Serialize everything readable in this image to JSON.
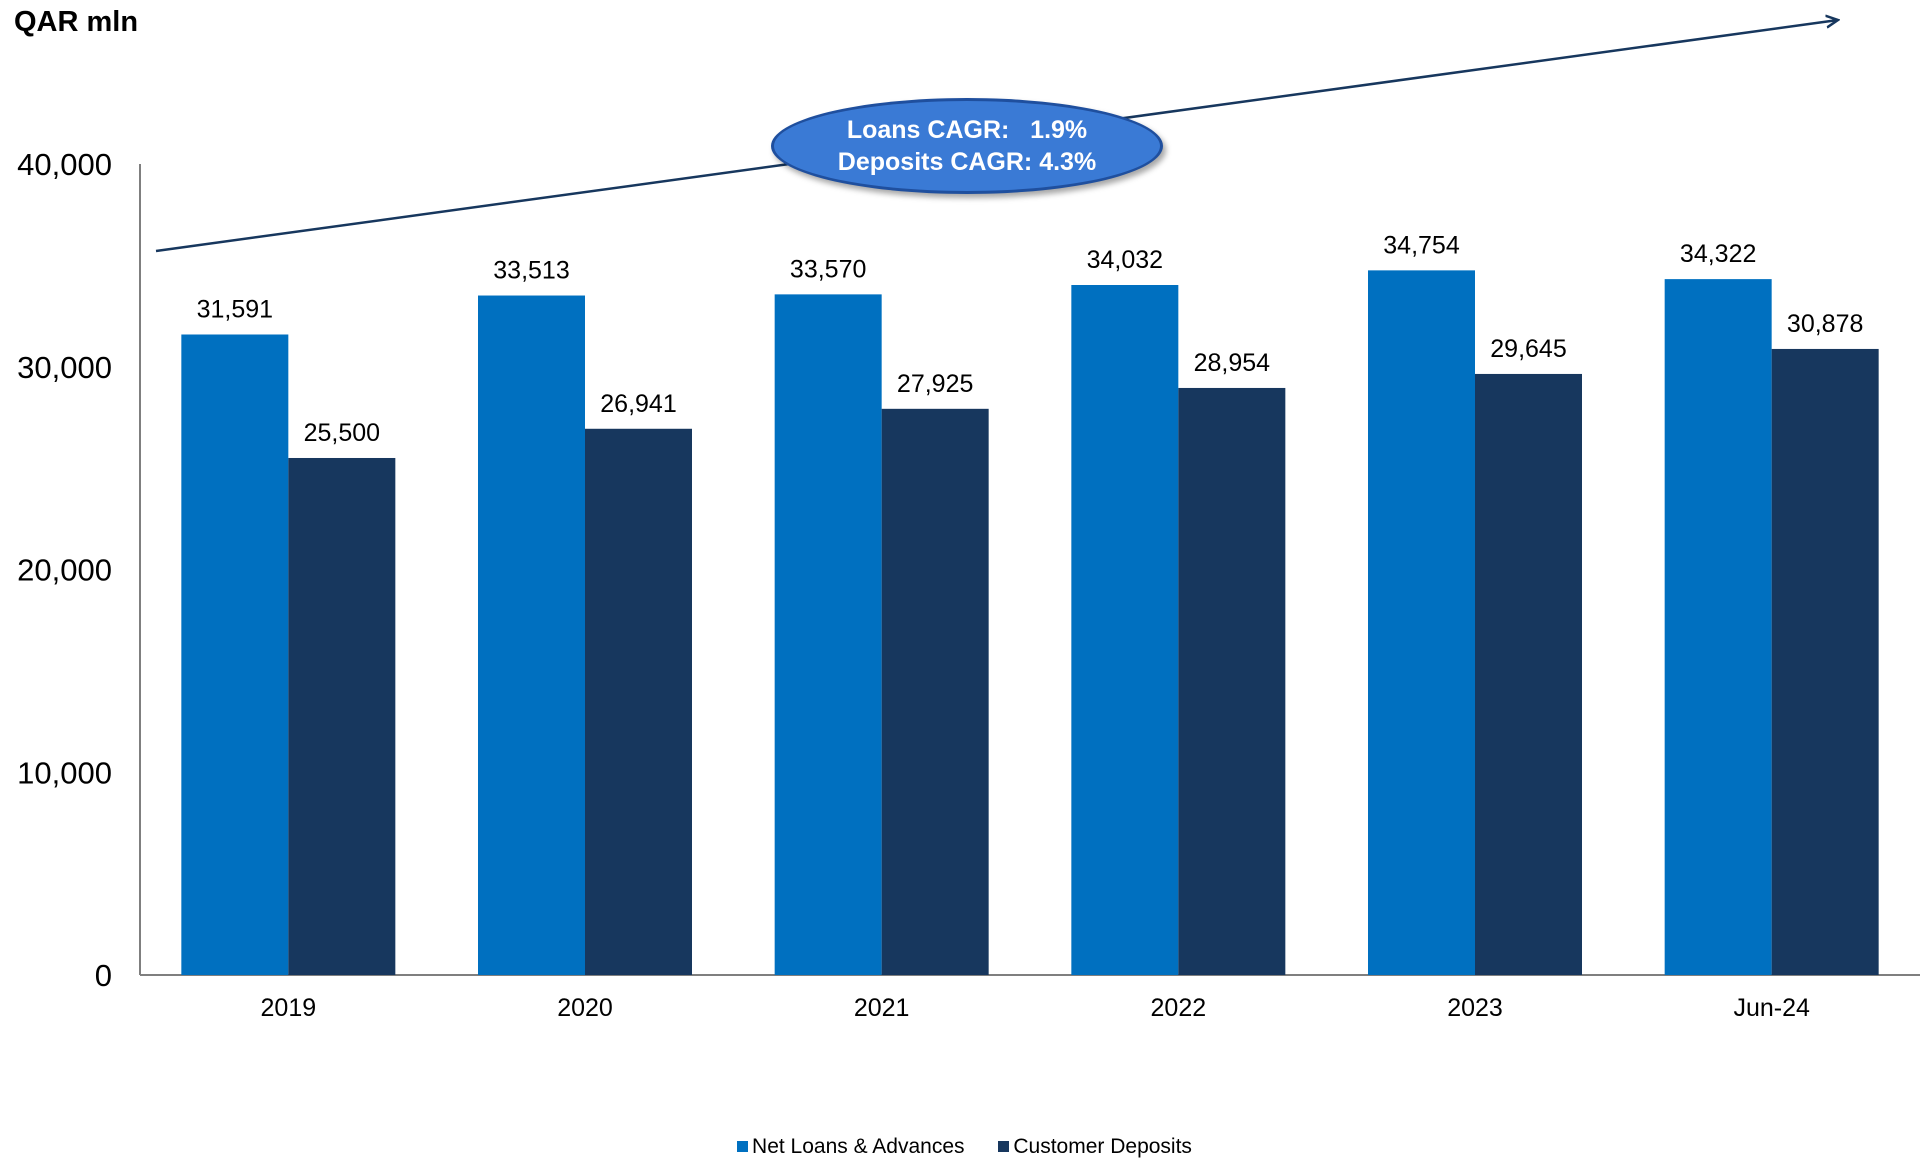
{
  "chart_data": {
    "type": "bar",
    "unit_label": "QAR mln",
    "categories": [
      "2019",
      "2020",
      "2021",
      "2022",
      "2023",
      "Jun-24"
    ],
    "series": [
      {
        "name": "Net Loans & Advances",
        "color": "#0070c0",
        "values": [
          31591,
          33513,
          33570,
          34032,
          34754,
          34322
        ],
        "labels": [
          "31,591",
          "33,513",
          "33,570",
          "34,032",
          "34,754",
          "34,322"
        ]
      },
      {
        "name": "Customer Deposits",
        "color": "#17375e",
        "values": [
          25500,
          26941,
          27925,
          28954,
          29645,
          30878
        ],
        "labels": [
          "25,500",
          "26,941",
          "27,925",
          "28,954",
          "29,645",
          "30,878"
        ]
      }
    ],
    "ylim": [
      0,
      40000
    ],
    "yticks": [
      0,
      10000,
      20000,
      30000,
      40000
    ],
    "ytick_labels": [
      "0",
      "10,000",
      "20,000",
      "30,000",
      "40,000"
    ],
    "grid": false,
    "legend_position": "bottom",
    "annotation": {
      "line1": "Loans CAGR:   1.9%",
      "line2": "Deposits CAGR: 4.3%",
      "fill_color": "#3a7ad5",
      "trend_arrow_color": "#17375e"
    }
  }
}
